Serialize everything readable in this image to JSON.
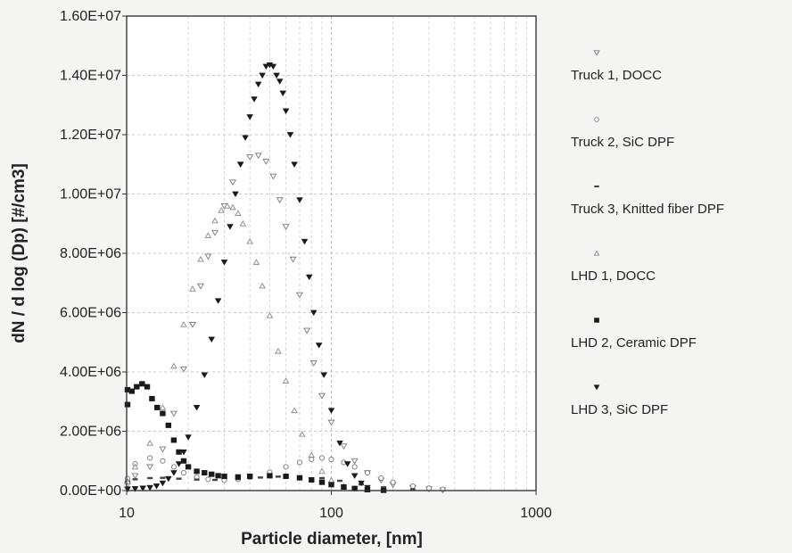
{
  "chart_data": {
    "type": "scatter",
    "title": "",
    "xlabel": "Particle diameter, [nm]",
    "ylabel": "dN / d log (Dp) [#/cm3]",
    "x_scale": "log",
    "xlim": [
      10,
      1000
    ],
    "ylim": [
      0,
      16000000
    ],
    "x_tick_labels": [
      "10",
      "100",
      "1000"
    ],
    "y_tick_labels": [
      "0.00E+00",
      "2.00E+06",
      "4.00E+06",
      "6.00E+06",
      "8.00E+06",
      "1.00E+07",
      "1.20E+07",
      "1.40E+07",
      "1.60E+07"
    ],
    "grid": true,
    "legend_position": "right",
    "series": [
      {
        "name": "Truck 1, DOCC",
        "marker": "triangle-down-open",
        "x": [
          9,
          11,
          13,
          15,
          17,
          19,
          21,
          23,
          25,
          27,
          30,
          33,
          36,
          40,
          44,
          48,
          52,
          56,
          60,
          65,
          70,
          76,
          82,
          90,
          100,
          115,
          130,
          150,
          175,
          200,
          250,
          300,
          350
        ],
        "values": [
          200000,
          500000,
          800000,
          1400000,
          2600000,
          4100000,
          5600000,
          6900000,
          7900000,
          8700000,
          9600000,
          10400000,
          11000000,
          11250000,
          11300000,
          11100000,
          10600000,
          9800000,
          8900000,
          7800000,
          6600000,
          5400000,
          4300000,
          3200000,
          2300000,
          1500000,
          1000000,
          600000,
          350000,
          200000,
          100000,
          50000,
          20000
        ]
      },
      {
        "name": "Truck 2, SiC DPF",
        "marker": "circle-open",
        "x": [
          9,
          11,
          13,
          15,
          17,
          19,
          22,
          25,
          30,
          35,
          40,
          50,
          60,
          70,
          80,
          90,
          100,
          115,
          130,
          150,
          175,
          200,
          250,
          300,
          350
        ],
        "values": [
          400000,
          900000,
          1100000,
          1000000,
          800000,
          600000,
          450000,
          380000,
          350000,
          380000,
          450000,
          620000,
          800000,
          950000,
          1050000,
          1100000,
          1050000,
          950000,
          800000,
          600000,
          420000,
          280000,
          150000,
          80000,
          40000
        ]
      },
      {
        "name": "Truck 3, Knitted fiber DPF",
        "marker": "dash",
        "x": [
          9,
          11,
          13,
          15,
          18,
          22,
          27,
          35,
          45,
          55,
          70,
          90,
          110,
          140,
          180,
          250
        ],
        "values": [
          300000,
          380000,
          420000,
          430000,
          400000,
          370000,
          360000,
          390000,
          440000,
          470000,
          470000,
          420000,
          330000,
          210000,
          110000,
          40000
        ]
      },
      {
        "name": "LHD 1, DOCC",
        "marker": "triangle-up-open",
        "x": [
          9,
          11,
          13,
          15,
          17,
          19,
          21,
          23,
          25,
          27,
          29,
          31,
          33,
          35,
          37,
          40,
          43,
          46,
          50,
          55,
          60,
          66,
          72,
          80,
          90,
          100,
          115,
          130,
          150
        ],
        "values": [
          300000,
          800000,
          1600000,
          2800000,
          4200000,
          5600000,
          6800000,
          7800000,
          8600000,
          9100000,
          9450000,
          9600000,
          9550000,
          9350000,
          9000000,
          8400000,
          7700000,
          6900000,
          5900000,
          4700000,
          3700000,
          2700000,
          1900000,
          1200000,
          650000,
          350000,
          150000,
          70000,
          30000
        ]
      },
      {
        "name": "LHD 2, Ceramic DPF",
        "marker": "square-filled",
        "x": [
          9,
          10,
          10.6,
          11.2,
          11.9,
          12.6,
          13.3,
          14.1,
          15,
          16,
          17,
          18,
          19,
          20,
          22,
          24,
          26,
          28,
          30,
          35,
          40,
          50,
          60,
          70,
          80,
          90,
          100,
          115,
          130,
          150,
          180
        ],
        "values": [
          2900000,
          3400000,
          3350000,
          3500000,
          3600000,
          3500000,
          3100000,
          2800000,
          2600000,
          2200000,
          1700000,
          1300000,
          1000000,
          800000,
          650000,
          600000,
          550000,
          500000,
          480000,
          460000,
          480000,
          500000,
          480000,
          430000,
          360000,
          280000,
          200000,
          120000,
          70000,
          30000,
          10000
        ]
      },
      {
        "name": "LHD 3, SiC DPF",
        "marker": "triangle-down-filled",
        "x": [
          9,
          10,
          11,
          12,
          13,
          14,
          15,
          16,
          17,
          18,
          19,
          20,
          22,
          24,
          26,
          28,
          30,
          32,
          34,
          36,
          38,
          40,
          42,
          44,
          46,
          48,
          50,
          52,
          54,
          56,
          58,
          60,
          63,
          66,
          70,
          74,
          78,
          82,
          87,
          92,
          100,
          110,
          120,
          130,
          140,
          150
        ],
        "values": [
          50000,
          50000,
          60000,
          80000,
          100000,
          150000,
          250000,
          400000,
          600000,
          900000,
          1300000,
          1800000,
          2800000,
          3900000,
          5100000,
          6400000,
          7700000,
          8900000,
          10000000,
          11000000,
          11900000,
          12600000,
          13200000,
          13700000,
          14000000,
          14300000,
          14350000,
          14300000,
          14000000,
          13800000,
          13400000,
          12800000,
          12000000,
          11000000,
          9800000,
          8400000,
          7200000,
          6000000,
          4900000,
          3900000,
          2700000,
          1600000,
          900000,
          500000,
          250000,
          100000
        ]
      }
    ]
  }
}
